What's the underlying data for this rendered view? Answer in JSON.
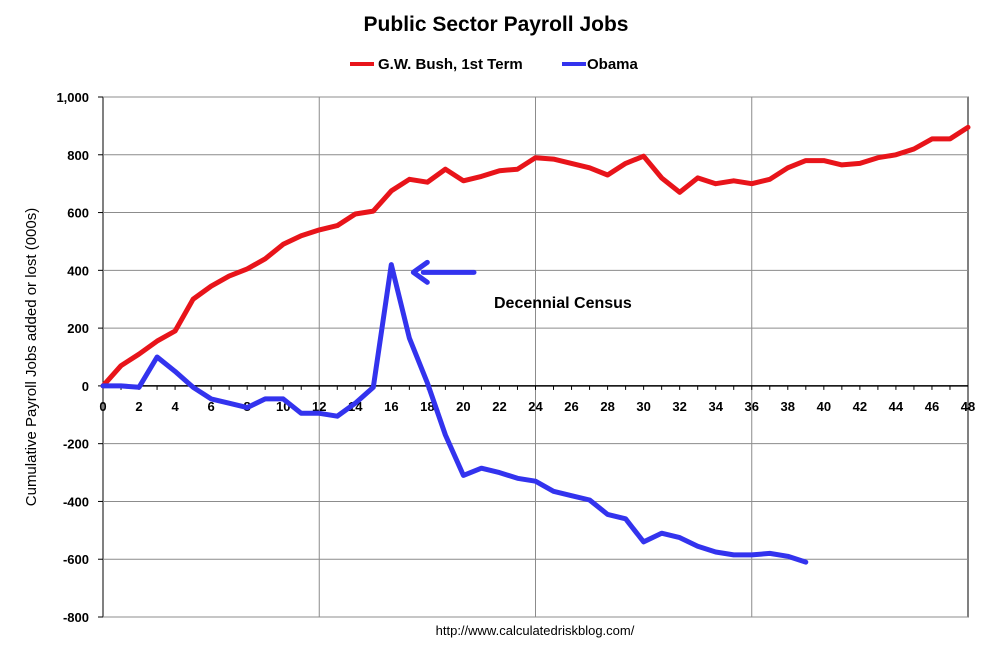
{
  "chart_data": {
    "type": "line",
    "title": "Public Sector Payroll Jobs",
    "xlabel": "",
    "ylabel": "Cumulative Payroll Jobs added or lost (000s)",
    "xlim": [
      0,
      48
    ],
    "ylim": [
      -800,
      1000
    ],
    "xticks": [
      0,
      2,
      4,
      6,
      8,
      10,
      12,
      14,
      16,
      18,
      20,
      22,
      24,
      26,
      28,
      30,
      32,
      34,
      36,
      38,
      40,
      42,
      44,
      46,
      48
    ],
    "yticks": [
      -800,
      -600,
      -400,
      -200,
      0,
      200,
      400,
      600,
      800,
      1000
    ],
    "ytick_labels": [
      "-800",
      "-600",
      "-400",
      "-200",
      "0",
      "200",
      "400",
      "600",
      "800",
      "1,000"
    ],
    "grid": "on",
    "legend_position": "top",
    "series": [
      {
        "name": "G.W. Bush, 1st Term",
        "color": "#e8141a",
        "x": [
          0,
          1,
          2,
          3,
          4,
          5,
          6,
          7,
          8,
          9,
          10,
          11,
          12,
          13,
          14,
          15,
          16,
          17,
          18,
          19,
          20,
          21,
          22,
          23,
          24,
          25,
          26,
          27,
          28,
          29,
          30,
          31,
          32,
          33,
          34,
          35,
          36,
          37,
          38,
          39,
          40,
          41,
          42,
          43,
          44,
          45,
          46,
          47,
          48
        ],
        "y": [
          0,
          70,
          110,
          155,
          190,
          300,
          345,
          380,
          405,
          440,
          490,
          520,
          540,
          555,
          595,
          605,
          675,
          715,
          705,
          750,
          710,
          725,
          745,
          750,
          790,
          785,
          770,
          755,
          730,
          770,
          795,
          720,
          670,
          720,
          700,
          710,
          700,
          715,
          755,
          780,
          780,
          765,
          770,
          790,
          800,
          820,
          855,
          855,
          895
        ]
      },
      {
        "name": "Obama",
        "color": "#3333ee",
        "x": [
          0,
          1,
          2,
          3,
          4,
          5,
          6,
          7,
          8,
          9,
          10,
          11,
          12,
          13,
          14,
          15,
          16,
          17,
          18,
          19,
          20,
          21,
          22,
          23,
          24,
          25,
          26,
          27,
          28,
          29,
          30,
          31,
          32,
          33,
          34,
          35,
          36,
          37,
          38,
          39
        ],
        "y": [
          0,
          0,
          -5,
          100,
          50,
          -5,
          -45,
          -60,
          -75,
          -45,
          -45,
          -95,
          -95,
          -105,
          -60,
          -5,
          420,
          165,
          10,
          -170,
          -310,
          -285,
          -300,
          -320,
          -330,
          -365,
          -380,
          -395,
          -445,
          -460,
          -540,
          -510,
          -525,
          -555,
          -575,
          -585,
          -585,
          -580,
          -590,
          -610
        ]
      }
    ],
    "annotation": {
      "text": "Decennial Census",
      "arrow_to": [
        16,
        400
      ]
    },
    "source": "http://www.calculatedriskblog.com/"
  }
}
